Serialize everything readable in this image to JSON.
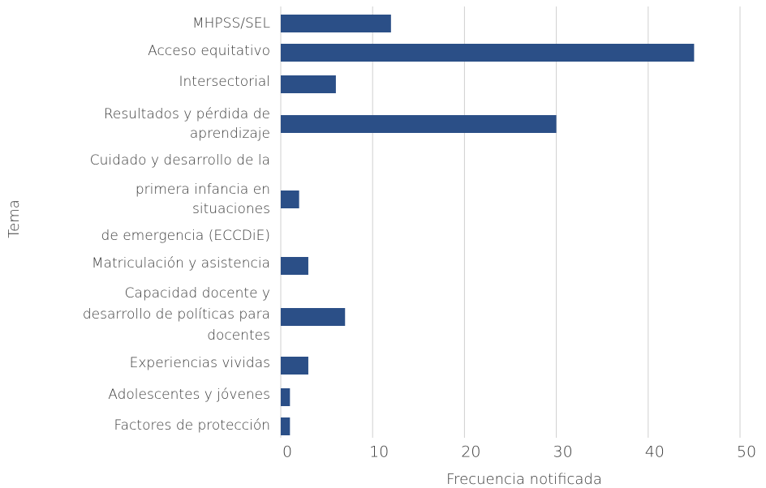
{
  "chart_data": {
    "type": "bar",
    "orientation": "horizontal",
    "x_label": "Frecuencia notificada",
    "y_label": "Tema",
    "categories": [
      [
        "MHPSS/SEL"
      ],
      [
        "Acceso equitativo"
      ],
      [
        "Intersectorial"
      ],
      [
        "Resultados y pérdida de",
        "aprendizaje"
      ],
      [
        "Cuidado y desarrollo de la",
        "primera infancia en",
        "situaciones",
        "de emergencia (ECCDiE)"
      ],
      [
        "Matriculación y asistencia"
      ],
      [
        "Capacidad docente y",
        "desarrollo de políticas para",
        "docentes"
      ],
      [
        "Experiencias vividas"
      ],
      [
        "Adolescentes y jóvenes"
      ],
      [
        "Factores de protección"
      ]
    ],
    "values": [
      12,
      45,
      6,
      30,
      2,
      3,
      7,
      3,
      1,
      1
    ],
    "color": "#2b4f87",
    "xlim": [
      0,
      50
    ],
    "xticks": [
      0,
      10,
      20,
      30,
      40,
      50
    ],
    "grid": true
  }
}
